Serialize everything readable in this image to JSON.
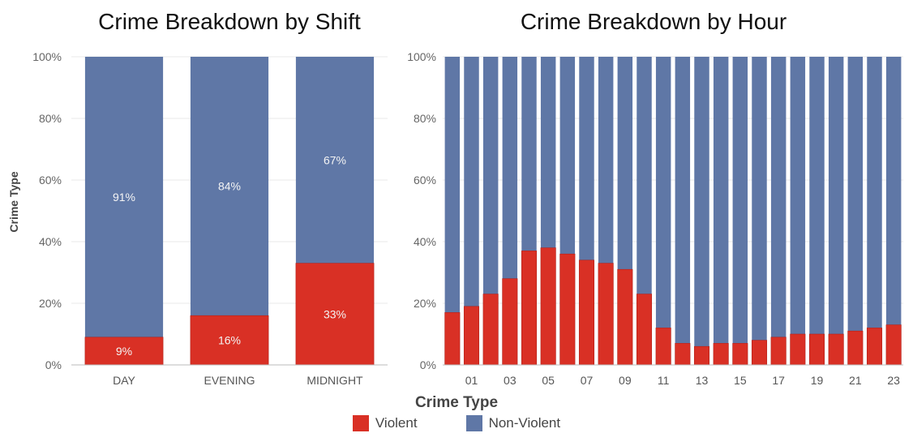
{
  "chart_data": [
    {
      "type": "bar",
      "stacked": true,
      "title": "Crime Breakdown by Shift",
      "ylabel": "Crime Type",
      "ylim": [
        0,
        100
      ],
      "yticks": [
        "0%",
        "20%",
        "40%",
        "60%",
        "80%",
        "100%"
      ],
      "categories": [
        "DAY",
        "EVENING",
        "MIDNIGHT"
      ],
      "series": [
        {
          "name": "Violent",
          "values": [
            9,
            16,
            33
          ],
          "labels": [
            "9%",
            "16%",
            "33%"
          ]
        },
        {
          "name": "Non-Violent",
          "values": [
            91,
            84,
            67
          ],
          "labels": [
            "91%",
            "84%",
            "67%"
          ]
        }
      ]
    },
    {
      "type": "bar",
      "stacked": true,
      "title": "Crime Breakdown by Hour",
      "ylim": [
        0,
        100
      ],
      "yticks": [
        "0%",
        "20%",
        "40%",
        "60%",
        "80%",
        "100%"
      ],
      "categories": [
        "00",
        "01",
        "02",
        "03",
        "04",
        "05",
        "06",
        "07",
        "08",
        "09",
        "10",
        "11",
        "12",
        "13",
        "14",
        "15",
        "16",
        "17",
        "18",
        "19",
        "20",
        "21",
        "22",
        "23"
      ],
      "xtick_labels": [
        "01",
        "03",
        "05",
        "07",
        "09",
        "11",
        "13",
        "15",
        "17",
        "19",
        "21",
        "23"
      ],
      "series": [
        {
          "name": "Violent",
          "values": [
            17,
            19,
            23,
            28,
            37,
            38,
            36,
            34,
            33,
            31,
            23,
            12,
            7,
            6,
            7,
            7,
            8,
            9,
            10,
            10,
            10,
            11,
            12,
            13
          ]
        },
        {
          "name": "Non-Violent",
          "values": [
            83,
            81,
            77,
            72,
            63,
            62,
            64,
            66,
            67,
            69,
            77,
            88,
            93,
            94,
            93,
            93,
            92,
            91,
            90,
            90,
            90,
            89,
            88,
            87
          ]
        }
      ]
    }
  ],
  "legend": {
    "title": "Crime Type",
    "placement": "bottom-center",
    "items": [
      {
        "label": "Violent",
        "color": "#d93025"
      },
      {
        "label": "Non-Violent",
        "color": "#5f77a6"
      }
    ]
  },
  "colors": {
    "violent": "#d93025",
    "nonviolent": "#5f77a6",
    "grid": "#e8e8e8",
    "axis": "#555555"
  }
}
